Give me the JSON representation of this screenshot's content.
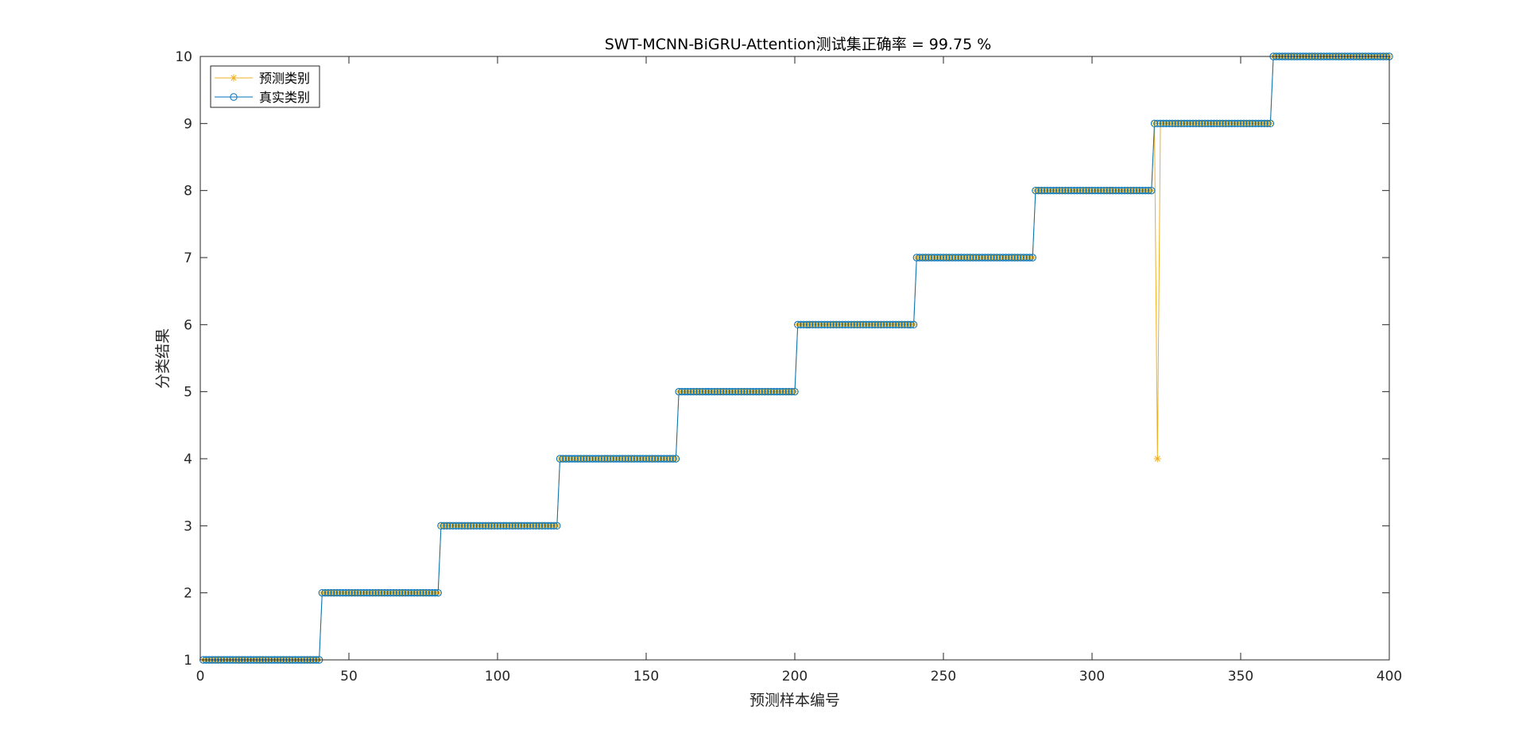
{
  "chart_data": {
    "type": "line",
    "title": "SWT-MCNN-BiGRU-Attention测试集正确率 = 99.75 %",
    "xlabel": "预测样本编号",
    "ylabel": "分类结果",
    "xlim": [
      0,
      400
    ],
    "ylim": [
      1,
      10
    ],
    "xticks": [
      0,
      50,
      100,
      150,
      200,
      250,
      300,
      350,
      400
    ],
    "yticks": [
      1,
      2,
      3,
      4,
      5,
      6,
      7,
      8,
      9,
      10
    ],
    "grid": false,
    "legend_position": "top-left",
    "colors": {
      "predicted": "#EDB120",
      "actual": "#0072BD",
      "axis": "#262626"
    },
    "series": [
      {
        "name": "预测类别",
        "marker": "*",
        "description": "samples 1-400, class steps every 40 samples, one misclassification",
        "segments": [
          {
            "from": 1,
            "to": 40,
            "value": 1
          },
          {
            "from": 41,
            "to": 80,
            "value": 2
          },
          {
            "from": 81,
            "to": 120,
            "value": 3
          },
          {
            "from": 121,
            "to": 160,
            "value": 4
          },
          {
            "from": 161,
            "to": 200,
            "value": 5
          },
          {
            "from": 201,
            "to": 240,
            "value": 6
          },
          {
            "from": 241,
            "to": 280,
            "value": 7
          },
          {
            "from": 281,
            "to": 320,
            "value": 8
          },
          {
            "from": 321,
            "to": 360,
            "value": 9
          },
          {
            "from": 361,
            "to": 400,
            "value": 10
          }
        ],
        "exceptions": [
          {
            "x": 322,
            "value": 4
          }
        ]
      },
      {
        "name": "真实类别",
        "marker": "o",
        "segments": [
          {
            "from": 1,
            "to": 40,
            "value": 1
          },
          {
            "from": 41,
            "to": 80,
            "value": 2
          },
          {
            "from": 81,
            "to": 120,
            "value": 3
          },
          {
            "from": 121,
            "to": 160,
            "value": 4
          },
          {
            "from": 161,
            "to": 200,
            "value": 5
          },
          {
            "from": 201,
            "to": 240,
            "value": 6
          },
          {
            "from": 241,
            "to": 280,
            "value": 7
          },
          {
            "from": 281,
            "to": 320,
            "value": 8
          },
          {
            "from": 321,
            "to": 360,
            "value": 9
          },
          {
            "from": 361,
            "to": 400,
            "value": 10
          }
        ],
        "exceptions": []
      }
    ]
  }
}
